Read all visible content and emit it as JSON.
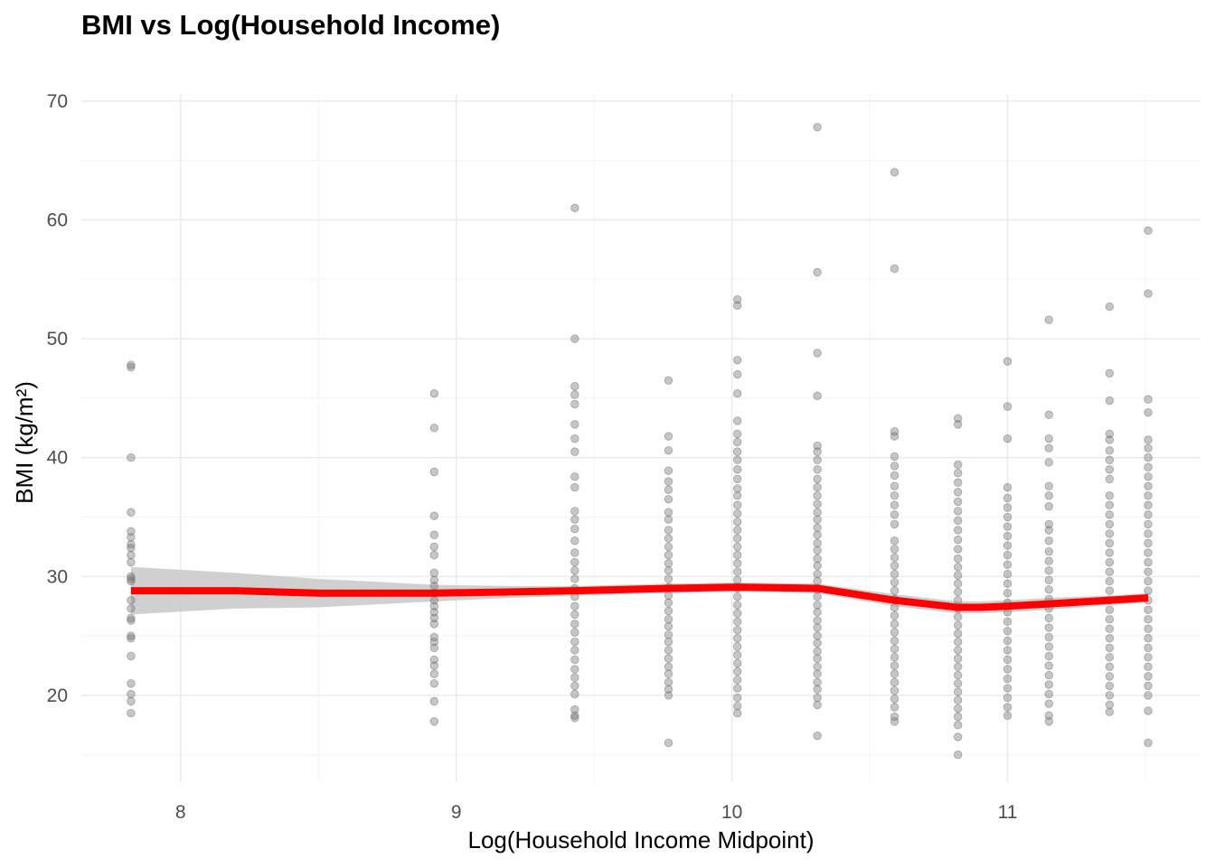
{
  "chart_data": {
    "type": "scatter",
    "title": "BMI vs Log(Household Income)",
    "xlabel": "Log(Household Income Midpoint)",
    "ylabel": "BMI (kg/m²)",
    "xlim": [
      7.64,
      11.7
    ],
    "ylim": [
      12.7,
      70.6
    ],
    "x_ticks": [
      8,
      9,
      10,
      11
    ],
    "y_ticks": [
      20,
      30,
      40,
      50,
      60,
      70
    ],
    "grid": true,
    "colors": {
      "points": "#707070",
      "trend": "#ff0000",
      "band": "#c8c8c8",
      "grid_major": "#ebebeb",
      "grid_minor": "#f3f3f3"
    },
    "series": [
      {
        "name": "observations",
        "kind": "points",
        "groups": [
          {
            "x": 7.82,
            "y": [
              47.8,
              47.6,
              40.0,
              35.4,
              33.8,
              33.3,
              32.7,
              32.4,
              31.8,
              31.2,
              30.0,
              29.8,
              29.6,
              28.0,
              27.3,
              26.5,
              26.3,
              25.0,
              24.8,
              23.3,
              21.0,
              20.1,
              19.5,
              18.5
            ]
          },
          {
            "x": 8.92,
            "y": [
              45.4,
              42.5,
              38.8,
              35.1,
              33.5,
              32.5,
              31.8,
              30.3,
              29.7,
              29.2,
              28.6,
              28.0,
              27.5,
              27.0,
              26.5,
              26.0,
              24.9,
              24.5,
              24.0,
              23.0,
              22.5,
              21.8,
              21.0,
              19.5,
              17.8
            ]
          },
          {
            "x": 9.43,
            "y": [
              61.0,
              50.0,
              46.0,
              45.3,
              44.5,
              42.8,
              41.6,
              40.5,
              38.4,
              37.5,
              35.5,
              34.8,
              34.0,
              33.0,
              32.0,
              31.2,
              30.5,
              29.8,
              29.0,
              28.3,
              27.5,
              26.8,
              26.0,
              25.3,
              24.5,
              23.8,
              23.0,
              22.2,
              21.5,
              20.8,
              20.1,
              18.8,
              18.3,
              18.1
            ]
          },
          {
            "x": 9.77,
            "y": [
              46.5,
              41.8,
              40.6,
              38.9,
              38.0,
              37.3,
              36.5,
              35.4,
              34.8,
              33.9,
              33.2,
              32.5,
              31.8,
              31.1,
              30.5,
              29.8,
              29.1,
              28.4,
              27.8,
              27.1,
              26.4,
              25.8,
              25.1,
              24.5,
              23.8,
              23.1,
              22.4,
              21.8,
              21.1,
              20.5,
              20.0,
              16.0
            ]
          },
          {
            "x": 10.02,
            "y": [
              53.3,
              52.8,
              48.2,
              47.0,
              45.4,
              43.1,
              42.0,
              41.3,
              40.5,
              39.8,
              39.0,
              38.2,
              37.4,
              36.8,
              36.0,
              35.3,
              34.6,
              33.9,
              33.2,
              32.5,
              31.8,
              31.1,
              30.4,
              29.7,
              29.0,
              28.3,
              27.6,
              26.9,
              26.2,
              25.5,
              24.8,
              24.1,
              23.4,
              22.7,
              22.0,
              21.3,
              20.6,
              19.8,
              19.1,
              18.5
            ]
          },
          {
            "x": 10.31,
            "y": [
              67.8,
              55.6,
              48.8,
              45.2,
              41.0,
              40.5,
              39.8,
              39.0,
              38.2,
              37.5,
              36.8,
              36.1,
              35.4,
              34.8,
              34.1,
              33.5,
              32.8,
              32.2,
              31.5,
              30.9,
              30.2,
              29.6,
              28.9,
              28.3,
              27.6,
              27.0,
              26.3,
              25.7,
              25.0,
              24.4,
              23.7,
              23.1,
              22.4,
              21.8,
              21.1,
              20.5,
              19.8,
              19.2,
              16.6
            ]
          },
          {
            "x": 10.59,
            "y": [
              64.0,
              55.9,
              42.2,
              41.8,
              40.1,
              39.3,
              38.5,
              37.6,
              36.8,
              36.0,
              35.2,
              34.4,
              33.0,
              32.3,
              31.6,
              30.9,
              30.2,
              29.5,
              28.8,
              28.1,
              27.4,
              26.7,
              26.0,
              25.3,
              24.6,
              23.9,
              23.2,
              22.5,
              21.8,
              21.1,
              20.4,
              19.7,
              19.0,
              18.2,
              17.8
            ]
          },
          {
            "x": 10.82,
            "y": [
              43.3,
              42.8,
              39.4,
              38.7,
              37.9,
              37.1,
              36.3,
              35.5,
              34.7,
              33.9,
              33.1,
              32.3,
              31.5,
              30.8,
              30.1,
              29.4,
              28.7,
              28.0,
              27.3,
              26.6,
              25.9,
              25.2,
              24.5,
              23.8,
              23.1,
              22.4,
              21.7,
              21.0,
              20.3,
              19.6,
              18.9,
              18.2,
              17.5,
              16.5,
              15.0
            ]
          },
          {
            "x": 11.0,
            "y": [
              48.1,
              44.3,
              41.6,
              37.5,
              36.6,
              35.8,
              35.0,
              34.2,
              33.4,
              32.6,
              31.8,
              31.0,
              30.2,
              29.4,
              28.6,
              27.8,
              27.0,
              26.2,
              25.4,
              24.6,
              23.8,
              23.0,
              22.2,
              21.4,
              20.6,
              19.8,
              19.0,
              18.3
            ]
          },
          {
            "x": 11.15,
            "y": [
              51.6,
              43.6,
              41.6,
              40.8,
              39.6,
              37.6,
              36.8,
              35.9,
              34.4,
              33.9,
              33.0,
              32.1,
              31.3,
              30.5,
              29.7,
              28.9,
              28.1,
              27.3,
              26.5,
              25.7,
              24.9,
              24.1,
              23.3,
              22.5,
              21.7,
              20.9,
              20.1,
              19.3,
              18.3,
              17.8
            ]
          },
          {
            "x": 11.37,
            "y": [
              52.7,
              47.1,
              44.8,
              42.0,
              41.5,
              40.6,
              39.8,
              39.0,
              38.2,
              36.8,
              36.0,
              35.2,
              34.4,
              33.6,
              32.8,
              32.0,
              31.2,
              30.4,
              29.6,
              28.8,
              28.0,
              27.2,
              26.4,
              25.6,
              24.8,
              24.0,
              23.2,
              22.4,
              21.6,
              20.8,
              20.0,
              19.2,
              18.6
            ]
          },
          {
            "x": 11.51,
            "y": [
              59.1,
              53.8,
              44.9,
              43.8,
              41.5,
              40.8,
              40.0,
              39.2,
              38.4,
              37.6,
              36.8,
              36.0,
              35.2,
              34.4,
              33.6,
              32.8,
              32.0,
              31.2,
              30.4,
              29.6,
              28.8,
              28.0,
              27.2,
              26.4,
              25.6,
              24.8,
              24.0,
              23.2,
              22.4,
              21.6,
              20.8,
              20.0,
              18.7,
              16.0
            ]
          }
        ]
      },
      {
        "name": "smooth",
        "kind": "line",
        "x": [
          7.82,
          8.2,
          8.5,
          8.92,
          9.2,
          9.43,
          9.77,
          10.02,
          10.31,
          10.59,
          10.82,
          10.9,
          11.0,
          11.15,
          11.37,
          11.51
        ],
        "y": [
          28.8,
          28.8,
          28.6,
          28.6,
          28.7,
          28.8,
          29.0,
          29.1,
          29.0,
          28.0,
          27.4,
          27.4,
          27.5,
          27.7,
          28.0,
          28.2
        ],
        "band_upper": [
          30.8,
          30.3,
          29.8,
          29.3,
          29.2,
          29.2,
          29.4,
          29.5,
          29.4,
          28.5,
          27.9,
          27.9,
          28.0,
          28.2,
          28.4,
          28.6
        ],
        "band_lower": [
          26.8,
          27.3,
          27.4,
          27.9,
          28.2,
          28.4,
          28.6,
          28.7,
          28.6,
          27.5,
          26.9,
          26.9,
          27.0,
          27.2,
          27.6,
          27.8
        ]
      }
    ]
  }
}
